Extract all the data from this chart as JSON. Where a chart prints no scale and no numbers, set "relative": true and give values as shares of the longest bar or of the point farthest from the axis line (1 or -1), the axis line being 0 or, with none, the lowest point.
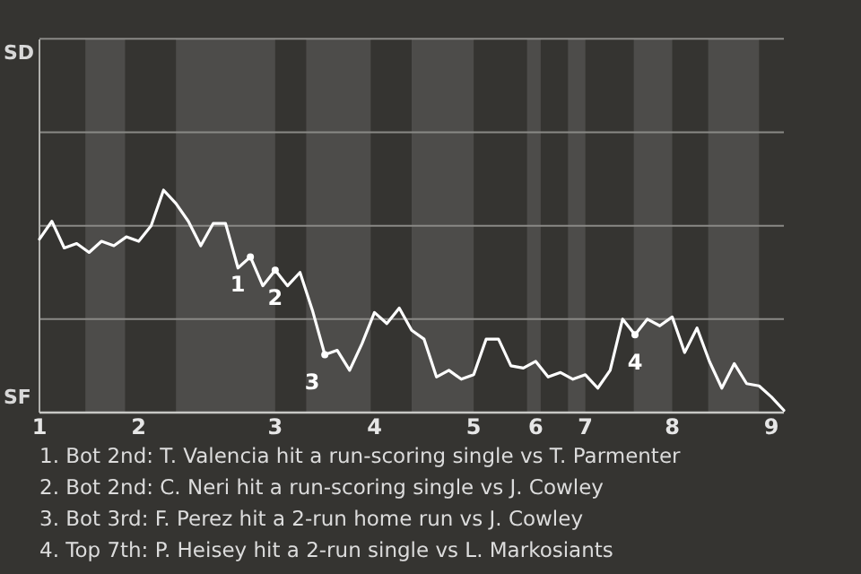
{
  "chart_data": {
    "type": "line",
    "relative": true,
    "categories": [
      "1",
      null,
      null,
      null,
      null,
      null,
      null,
      null,
      "2",
      null,
      null,
      null,
      null,
      null,
      null,
      null,
      null,
      null,
      null,
      "3",
      null,
      null,
      null,
      null,
      null,
      null,
      null,
      "4",
      null,
      null,
      null,
      null,
      null,
      null,
      null,
      "5",
      null,
      null,
      null,
      null,
      "6",
      null,
      null,
      null,
      "7",
      null,
      null,
      null,
      null,
      null,
      null,
      "8",
      null,
      null,
      null,
      null,
      null,
      null,
      null,
      "9",
      null
    ],
    "series": [
      {
        "color": "#ffffff",
        "marker": "none",
        "values": [
          0.78,
          0.86,
          0.74,
          0.76,
          0.72,
          0.77,
          0.75,
          0.79,
          0.77,
          0.84,
          1,
          0.94,
          0.86,
          0.75,
          0.85,
          0.85,
          0.65,
          0.7,
          0.57,
          0.64,
          0.57,
          0.63,
          0.46,
          0.26,
          0.28,
          0.19,
          0.31,
          0.45,
          0.4,
          0.47,
          0.37,
          0.33,
          0.16,
          0.19,
          0.15,
          0.17,
          0.33,
          0.33,
          0.21,
          0.2,
          0.23,
          0.16,
          0.18,
          0.15,
          0.17,
          0.11,
          0.19,
          0.42,
          0.35,
          0.42,
          0.39,
          0.43,
          0.27,
          0.38,
          0.23,
          0.11,
          0.22,
          0.13,
          0.12,
          0.07,
          0.01
        ]
      },
      {
        "type": "scatter",
        "name": "1",
        "color": "#ffffff",
        "marker": "circle",
        "values": [
          null,
          null,
          null,
          null,
          null,
          null,
          null,
          null,
          null,
          null,
          null,
          null,
          null,
          null,
          null,
          null,
          null,
          0.7,
          null,
          null,
          null,
          null,
          null,
          null,
          null,
          null,
          null,
          null,
          null,
          null,
          null,
          null,
          null,
          null,
          null,
          null,
          null,
          null,
          null,
          null,
          null,
          null,
          null,
          null,
          null,
          null,
          null,
          null,
          null,
          null,
          null,
          null,
          null,
          null,
          null,
          null,
          null,
          null,
          null,
          null,
          null
        ]
      },
      {
        "type": "scatter",
        "name": "2",
        "color": "#ffffff",
        "marker": "circle",
        "values": [
          null,
          null,
          null,
          null,
          null,
          null,
          null,
          null,
          null,
          null,
          null,
          null,
          null,
          null,
          null,
          null,
          null,
          null,
          null,
          0.64,
          null,
          null,
          null,
          null,
          null,
          null,
          null,
          null,
          null,
          null,
          null,
          null,
          null,
          null,
          null,
          null,
          null,
          null,
          null,
          null,
          null,
          null,
          null,
          null,
          null,
          null,
          null,
          null,
          null,
          null,
          null,
          null,
          null,
          null,
          null,
          null,
          null,
          null,
          null,
          null,
          null
        ]
      },
      {
        "type": "scatter",
        "name": "3",
        "color": "#ffffff",
        "marker": "circle",
        "values": [
          null,
          null,
          null,
          null,
          null,
          null,
          null,
          null,
          null,
          null,
          null,
          null,
          null,
          null,
          null,
          null,
          null,
          null,
          null,
          null,
          null,
          null,
          null,
          0.26,
          null,
          null,
          null,
          null,
          null,
          null,
          null,
          null,
          null,
          null,
          null,
          null,
          null,
          null,
          null,
          null,
          null,
          null,
          null,
          null,
          null,
          null,
          null,
          null,
          null,
          null,
          null,
          null,
          null,
          null,
          null,
          null,
          null,
          null,
          null,
          null,
          null
        ]
      },
      {
        "type": "scatter",
        "name": "4",
        "color": "#ffffff",
        "marker": "circle",
        "values": [
          null,
          null,
          null,
          null,
          null,
          null,
          null,
          null,
          null,
          null,
          null,
          null,
          null,
          null,
          null,
          null,
          null,
          null,
          null,
          null,
          null,
          null,
          null,
          null,
          null,
          null,
          null,
          null,
          null,
          null,
          null,
          null,
          null,
          null,
          null,
          null,
          null,
          null,
          null,
          null,
          null,
          null,
          null,
          null,
          null,
          null,
          null,
          null,
          0.35,
          null,
          null,
          null,
          null,
          null,
          null,
          null,
          null,
          null,
          null,
          null,
          null
        ]
      }
    ],
    "ref_lines": [
      {
        "axis": "y",
        "value": 0.42,
        "color": "#8a8986"
      },
      {
        "axis": "y",
        "value": 0.84,
        "color": "#8a8986"
      },
      {
        "axis": "y",
        "value": 1.26,
        "color": "#8a8986"
      },
      {
        "axis": "y",
        "value": 1.68,
        "color": "#8a8986"
      }
    ],
    "annotations": [
      "SD",
      "SF",
      "1. Bot 2nd: T. Valencia hit a run-scoring single vs T. Parmenter",
      "2. Bot 2nd: C. Neri hit a run-scoring single vs J. Cowley",
      "3. Bot 3rd: F. Perez hit a 2-run home run vs J. Cowley",
      "4. Top 7th: P. Heisey hit a 2-run single vs L. Markosiants"
    ]
  }
}
